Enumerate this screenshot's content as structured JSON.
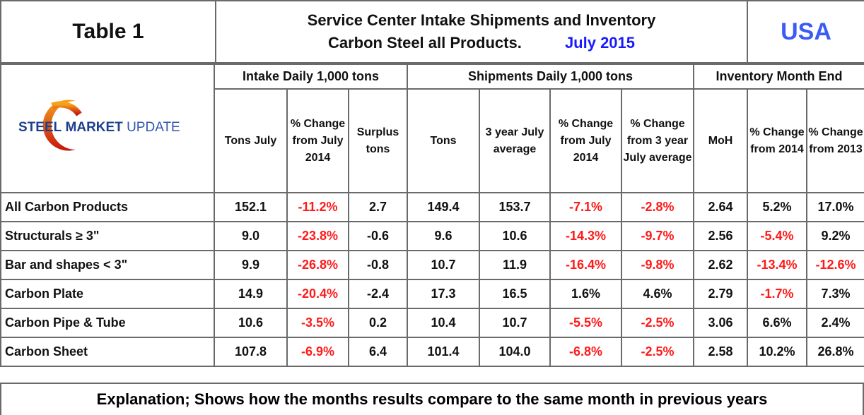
{
  "header": {
    "table_label": "Table 1",
    "title_line1": "Service Center Intake Shipments and Inventory",
    "title_line2": "Carbon Steel all Products.",
    "period": "July 2015",
    "region": "USA"
  },
  "logo": {
    "text_bold": "STEEL",
    "text_mid": "MARKET",
    "text_light": "UPDATE"
  },
  "groups": {
    "intake": "Intake Daily 1,000 tons",
    "shipments": "Shipments Daily 1,000 tons",
    "inventory": "Inventory Month End"
  },
  "columns": [
    "Tons July",
    "% Change from July 2014",
    "Surplus tons",
    "Tons",
    "3 year July average",
    "% Change from July 2014",
    "% Change from 3 year July average",
    "MoH",
    "% Change from 2014",
    "% Change from 2013"
  ],
  "rows": [
    {
      "label": "All Carbon Products",
      "values": [
        "152.1",
        "-11.2%",
        "2.7",
        "149.4",
        "153.7",
        "-7.1%",
        "-2.8%",
        "2.64",
        "5.2%",
        "17.0%"
      ]
    },
    {
      "label": "Structurals ≥ 3\"",
      "values": [
        "9.0",
        "-23.8%",
        "-0.6",
        "9.6",
        "10.6",
        "-14.3%",
        "-9.7%",
        "2.56",
        "-5.4%",
        "9.2%"
      ]
    },
    {
      "label": "Bar and shapes < 3\"",
      "values": [
        "9.9",
        "-26.8%",
        "-0.8",
        "10.7",
        "11.9",
        "-16.4%",
        "-9.8%",
        "2.62",
        "-13.4%",
        "-12.6%"
      ]
    },
    {
      "label": "Carbon Plate",
      "values": [
        "14.9",
        "-20.4%",
        "-2.4",
        "17.3",
        "16.5",
        "1.6%",
        "4.6%",
        "2.79",
        "-1.7%",
        "7.3%"
      ]
    },
    {
      "label": "Carbon Pipe & Tube",
      "values": [
        "10.6",
        "-3.5%",
        "0.2",
        "10.4",
        "10.7",
        "-5.5%",
        "-2.5%",
        "3.06",
        "6.6%",
        "2.4%"
      ]
    },
    {
      "label": "Carbon Sheet",
      "values": [
        "107.8",
        "-6.9%",
        "6.4",
        "101.4",
        "104.0",
        "-6.8%",
        "-2.5%",
        "2.58",
        "10.2%",
        "26.8%"
      ]
    }
  ],
  "footer": "Explanation; Shows how the months results compare to the same month in previous years"
}
